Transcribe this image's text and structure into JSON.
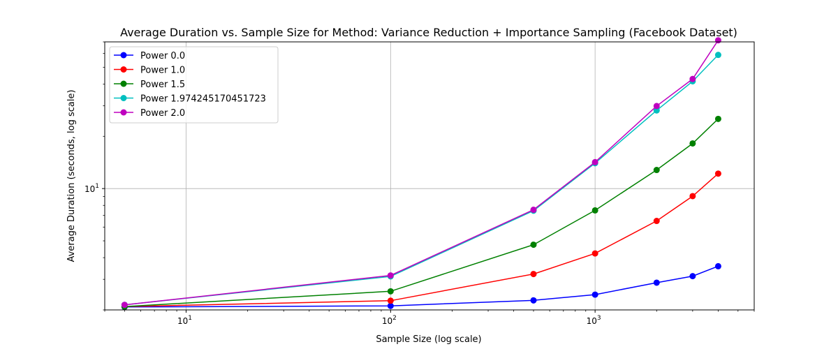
{
  "chart_data": {
    "type": "line",
    "title": "Average Duration vs. Sample Size for Method: Variance Reduction + Importance Sampling (Facebook Dataset)",
    "xlabel": "Sample Size (log scale)",
    "ylabel": "Average Duration (seconds, log scale)",
    "x_scale": "log",
    "y_scale": "log",
    "xlim": [
      4,
      6000
    ],
    "ylim": [
      2.0,
      70
    ],
    "x_ticks": [
      {
        "value": 10,
        "base": "10",
        "exp": "1"
      },
      {
        "value": 100,
        "base": "10",
        "exp": "2"
      },
      {
        "value": 1000,
        "base": "10",
        "exp": "3"
      }
    ],
    "y_ticks": [
      {
        "value": 10,
        "base": "10",
        "exp": "1"
      }
    ],
    "grid": true,
    "legend_position": "top-left",
    "x": [
      5,
      100,
      500,
      1000,
      2000,
      3000,
      4000
    ],
    "series": [
      {
        "name": "Power 0.0",
        "color": "#0000ff",
        "values": [
          2.08,
          2.11,
          2.27,
          2.45,
          2.87,
          3.13,
          3.57
        ]
      },
      {
        "name": "Power 1.0",
        "color": "#ff0000",
        "values": [
          2.09,
          2.26,
          3.22,
          4.23,
          6.51,
          9.05,
          12.2
        ]
      },
      {
        "name": "Power 1.5",
        "color": "#008000",
        "values": [
          2.09,
          2.56,
          4.75,
          7.49,
          12.8,
          18.2,
          25.2
        ]
      },
      {
        "name": "Power 1.974245170451723",
        "color": "#00bfbf",
        "values": [
          2.14,
          3.12,
          7.46,
          14.0,
          28.2,
          41.5,
          58.9
        ]
      },
      {
        "name": "Power 2.0",
        "color": "#bf00bf",
        "values": [
          2.14,
          3.16,
          7.55,
          14.2,
          29.9,
          42.8,
          71.5
        ]
      }
    ]
  }
}
